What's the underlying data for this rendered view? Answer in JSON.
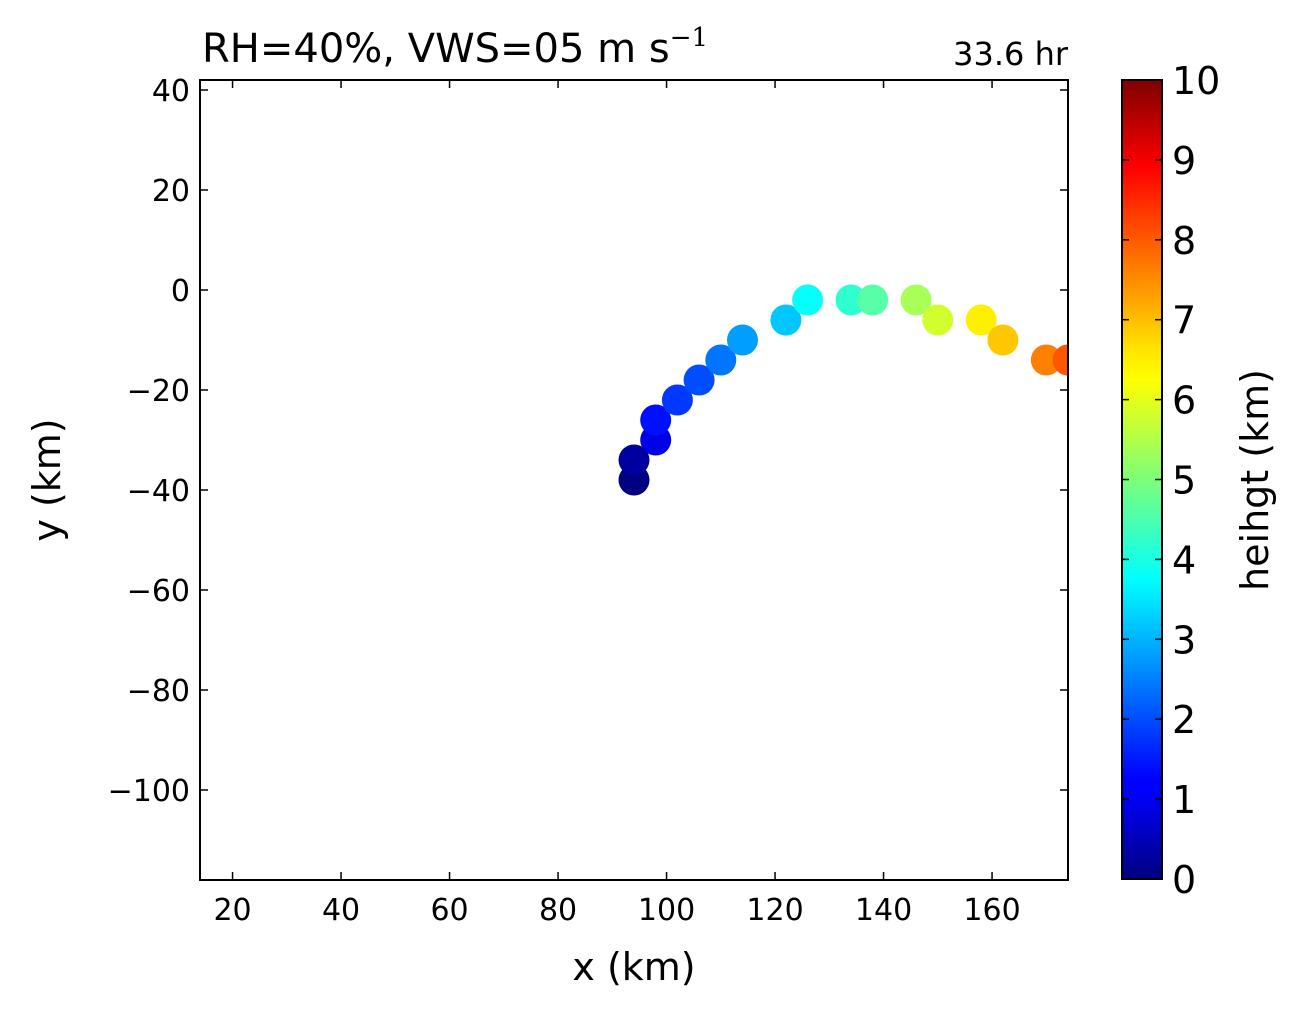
{
  "chart_data": {
    "type": "scatter",
    "title_main": "RH=40%, VWS=05 m s",
    "title_exponent": "−1",
    "annotation": "33.6 hr",
    "annotation_color": "#0000ff",
    "xlabel": "x (km)",
    "ylabel": "y (km)",
    "xlim": [
      14,
      174
    ],
    "ylim": [
      -118,
      42
    ],
    "xticks": [
      20,
      40,
      60,
      80,
      100,
      120,
      140,
      160
    ],
    "yticks": [
      40,
      20,
      0,
      -20,
      -40,
      -60,
      -80,
      -100
    ],
    "grid": false,
    "colormap": "jet",
    "colorbar": {
      "label": "heihgt (km)",
      "range": [
        0,
        10
      ],
      "ticks": [
        0,
        1,
        2,
        3,
        4,
        5,
        6,
        7,
        8,
        9,
        10
      ]
    },
    "points": [
      {
        "x": 94,
        "y": -38,
        "height": 0.0
      },
      {
        "x": 94,
        "y": -34,
        "height": 0.3
      },
      {
        "x": 98,
        "y": -30,
        "height": 1.0
      },
      {
        "x": 98,
        "y": -26,
        "height": 1.4
      },
      {
        "x": 102,
        "y": -22,
        "height": 1.8
      },
      {
        "x": 106,
        "y": -18,
        "height": 2.0
      },
      {
        "x": 110,
        "y": -14,
        "height": 2.4
      },
      {
        "x": 114,
        "y": -10,
        "height": 2.8
      },
      {
        "x": 122,
        "y": -6,
        "height": 3.2
      },
      {
        "x": 126,
        "y": -2,
        "height": 3.8
      },
      {
        "x": 134,
        "y": -2,
        "height": 4.2
      },
      {
        "x": 138,
        "y": -2,
        "height": 4.6
      },
      {
        "x": 146,
        "y": -2,
        "height": 5.4
      },
      {
        "x": 150,
        "y": -6,
        "height": 5.8
      },
      {
        "x": 158,
        "y": -6,
        "height": 6.4
      },
      {
        "x": 162,
        "y": -10,
        "height": 6.8
      },
      {
        "x": 170,
        "y": -14,
        "height": 7.5
      },
      {
        "x": 174,
        "y": -14,
        "height": 7.9
      }
    ]
  }
}
